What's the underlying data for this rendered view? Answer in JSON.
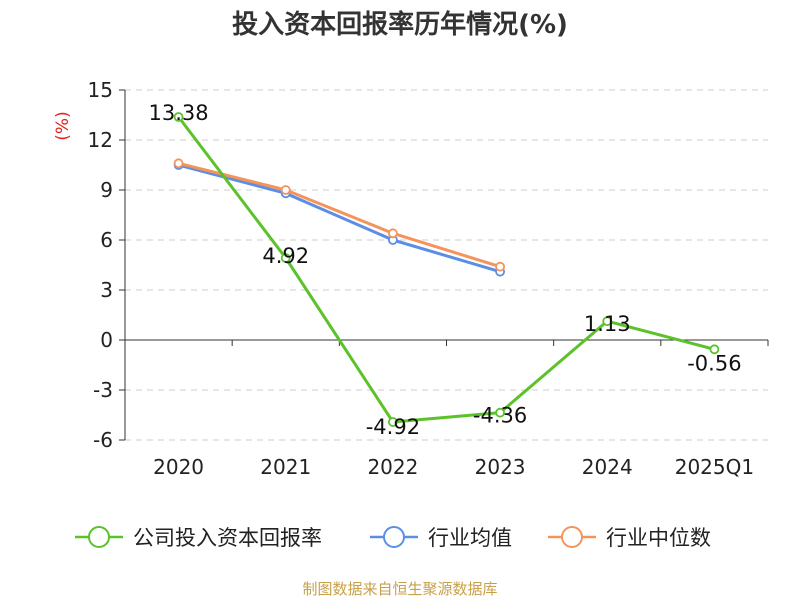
{
  "chart_data": {
    "type": "line",
    "title": "投入资本回报率历年情况(%)",
    "ylabel": "(%)",
    "xlabel": "",
    "categories": [
      "2020",
      "2021",
      "2022",
      "2023",
      "2024",
      "2025Q1"
    ],
    "ylim": [
      -6,
      15
    ],
    "yticks": [
      15,
      12,
      9,
      6,
      3,
      0,
      -3,
      -6
    ],
    "grid": true,
    "legend_position": "bottom",
    "series": [
      {
        "name": "公司投入资本回报率",
        "color": "#5cc22a",
        "values": [
          13.38,
          4.92,
          -4.92,
          -4.36,
          1.13,
          -0.56
        ],
        "labels": [
          "13.38",
          "4.92",
          "-4.92",
          "-4.36",
          "1.13",
          "-0.56"
        ]
      },
      {
        "name": "行业均值",
        "color": "#5b8ee6",
        "values": [
          10.5,
          8.8,
          6.0,
          4.1,
          null,
          null
        ]
      },
      {
        "name": "行业中位数",
        "color": "#f4935a",
        "values": [
          10.6,
          9.0,
          6.4,
          4.4,
          null,
          null
        ]
      }
    ]
  },
  "source": "制图数据来自恒生聚源数据库"
}
